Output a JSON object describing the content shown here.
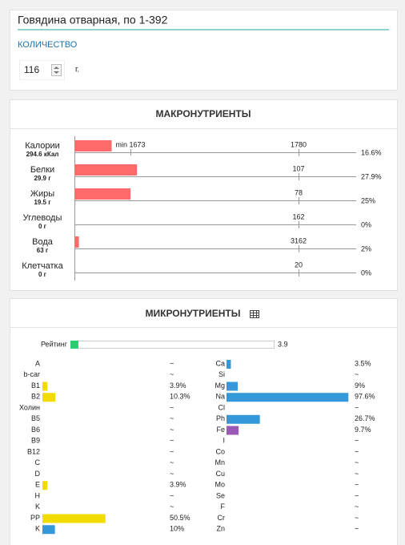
{
  "header": {
    "title": "Говядина отварная, по 1-392",
    "quantity_label": "КОЛИЧЕСТВО",
    "quantity": "116",
    "unit": "г."
  },
  "macro": {
    "title": "МАКРОНУТРИЕНТЫ",
    "min_label": "min 1673",
    "rows": [
      {
        "name": "Калории",
        "amount": "294.6 кКал",
        "norm": "1780",
        "percent": 16.6,
        "percent_label": "16.6%"
      },
      {
        "name": "Белки",
        "amount": "29.9 г",
        "norm": "107",
        "percent": 27.9,
        "percent_label": "27.9%"
      },
      {
        "name": "Жиры",
        "amount": "19.5 г",
        "norm": "78",
        "percent": 25,
        "percent_label": "25%"
      },
      {
        "name": "Углеводы",
        "amount": "0 г",
        "norm": "162",
        "percent": 0,
        "percent_label": "0%"
      },
      {
        "name": "Вода",
        "amount": "63 г",
        "norm": "3162",
        "percent": 2,
        "percent_label": "2%"
      },
      {
        "name": "Клетчатка",
        "amount": "0 г",
        "norm": "20",
        "percent": 0,
        "percent_label": "0%"
      }
    ]
  },
  "micro": {
    "title": "МИКРОНУТРИЕНТЫ",
    "rating_label": "Рейтинг",
    "rating": 3.9,
    "left": [
      {
        "name": "A",
        "value": null,
        "label": "~"
      },
      {
        "name": "b-car",
        "value": null,
        "label": "~"
      },
      {
        "name": "B1",
        "value": 3.9,
        "label": "3.9%",
        "color": "#f2dc00"
      },
      {
        "name": "B2",
        "value": 10.3,
        "label": "10.3%",
        "color": "#f2dc00"
      },
      {
        "name": "Холин",
        "value": null,
        "label": "~"
      },
      {
        "name": "B5",
        "value": null,
        "label": "~"
      },
      {
        "name": "B6",
        "value": null,
        "label": "~"
      },
      {
        "name": "B9",
        "value": null,
        "label": "~"
      },
      {
        "name": "B12",
        "value": null,
        "label": "~"
      },
      {
        "name": "C",
        "value": null,
        "label": "~"
      },
      {
        "name": "D",
        "value": null,
        "label": "~"
      },
      {
        "name": "E",
        "value": 3.9,
        "label": "3.9%",
        "color": "#f2dc00"
      },
      {
        "name": "H",
        "value": null,
        "label": "~"
      },
      {
        "name": "K",
        "value": null,
        "label": "~"
      },
      {
        "name": "PP",
        "value": 50.5,
        "label": "50.5%",
        "color": "#f2dc00"
      },
      {
        "name": "K",
        "value": 10,
        "label": "10%",
        "color": "#3498db"
      }
    ],
    "right": [
      {
        "name": "Ca",
        "value": 3.5,
        "label": "3.5%",
        "color": "#3498db"
      },
      {
        "name": "Si",
        "value": null,
        "label": "~"
      },
      {
        "name": "Mg",
        "value": 9,
        "label": "9%",
        "color": "#3498db"
      },
      {
        "name": "Na",
        "value": 97.6,
        "label": "97.6%",
        "color": "#3498db"
      },
      {
        "name": "Cl",
        "value": null,
        "label": "~"
      },
      {
        "name": "Ph",
        "value": 26.7,
        "label": "26.7%",
        "color": "#3498db"
      },
      {
        "name": "Fe",
        "value": 9.7,
        "label": "9.7%",
        "color": "#9b59b6"
      },
      {
        "name": "I",
        "value": null,
        "label": "~"
      },
      {
        "name": "Co",
        "value": null,
        "label": "~"
      },
      {
        "name": "Mn",
        "value": null,
        "label": "~"
      },
      {
        "name": "Cu",
        "value": null,
        "label": "~"
      },
      {
        "name": "Mo",
        "value": null,
        "label": "~"
      },
      {
        "name": "Se",
        "value": null,
        "label": "~"
      },
      {
        "name": "F",
        "value": null,
        "label": "~"
      },
      {
        "name": "Cr",
        "value": null,
        "label": "~"
      },
      {
        "name": "Zn",
        "value": null,
        "label": "~"
      }
    ]
  }
}
